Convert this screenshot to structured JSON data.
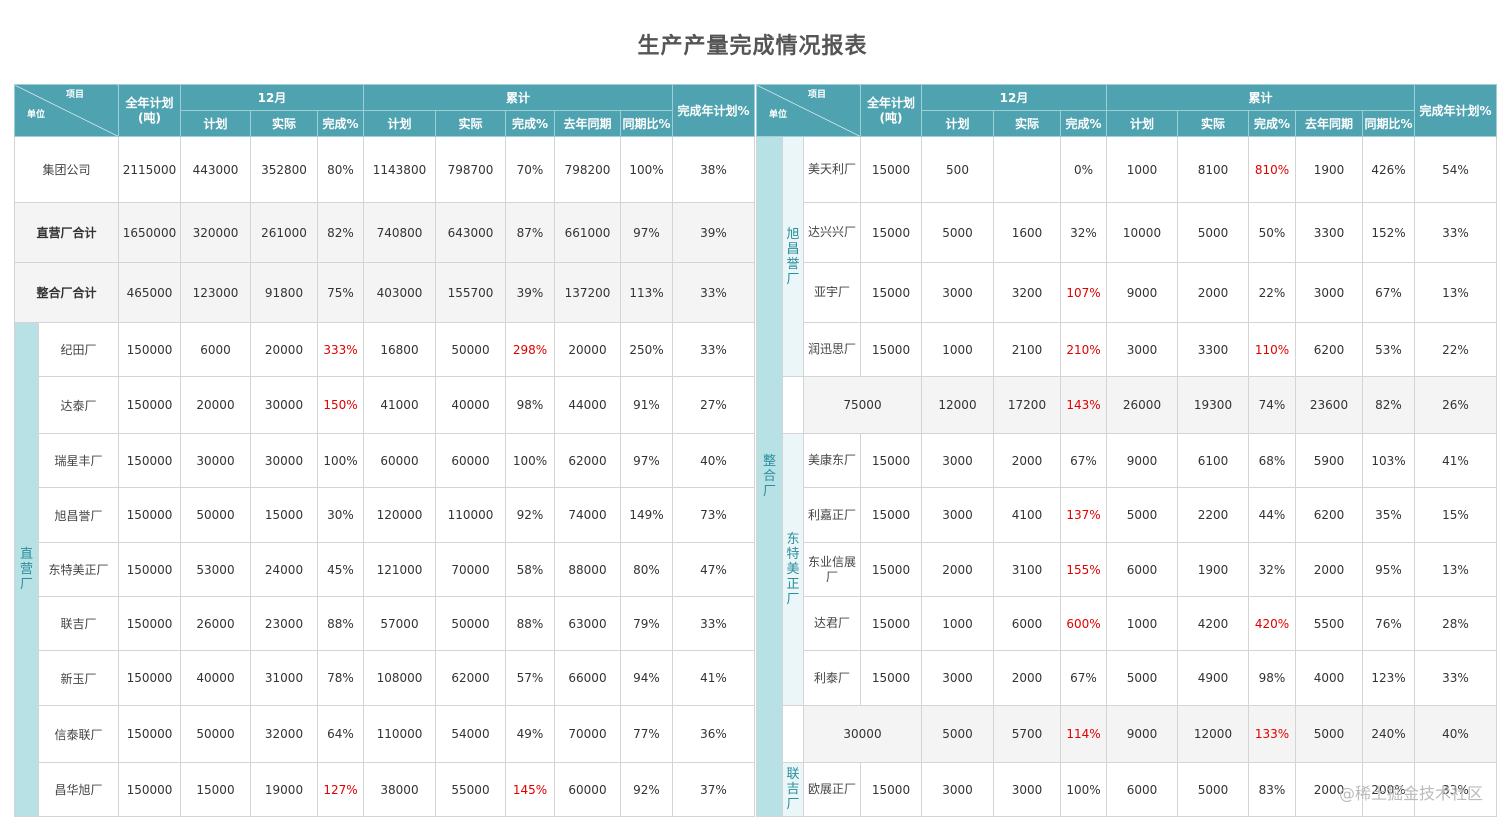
{
  "title": "生产产量完成情况报表",
  "watermark": "@稀土掘金技术社区",
  "colors": {
    "header": "#4fa3b0",
    "group": "#b8e1e6",
    "red": "#e00000"
  },
  "header": {
    "xiangmu": "项目",
    "danwei": "单位",
    "annual_plan": "全年计划(吨)",
    "dec": "12月",
    "cumulative": "累计",
    "plan": "计划",
    "actual": "实际",
    "rate": "完成%",
    "last_year": "去年同期",
    "yoy": "同期比%",
    "annual_rate": "完成年计划%"
  },
  "left": {
    "summary_rows": [
      {
        "name": "集团公司",
        "bold": false,
        "gray": false,
        "v": [
          "2115000",
          "443000",
          "352800",
          "80%",
          "1143800",
          "798700",
          "70%",
          "798200",
          "100%",
          "38%"
        ],
        "red": []
      },
      {
        "name": "直营厂合计",
        "bold": true,
        "gray": true,
        "v": [
          "1650000",
          "320000",
          "261000",
          "82%",
          "740800",
          "643000",
          "87%",
          "661000",
          "97%",
          "39%"
        ],
        "red": []
      },
      {
        "name": "整合厂合计",
        "bold": true,
        "gray": true,
        "v": [
          "465000",
          "123000",
          "91800",
          "75%",
          "403000",
          "155700",
          "39%",
          "137200",
          "113%",
          "33%"
        ],
        "red": []
      }
    ],
    "group_label": "直营厂",
    "rows": [
      {
        "name": "纪田厂",
        "v": [
          "150000",
          "6000",
          "20000",
          "333%",
          "16800",
          "50000",
          "298%",
          "20000",
          "250%",
          "33%"
        ],
        "red": [
          3,
          6
        ]
      },
      {
        "name": "达泰厂",
        "v": [
          "150000",
          "20000",
          "30000",
          "150%",
          "41000",
          "40000",
          "98%",
          "44000",
          "91%",
          "27%"
        ],
        "red": [
          3
        ]
      },
      {
        "name": "瑞星丰厂",
        "v": [
          "150000",
          "30000",
          "30000",
          "100%",
          "60000",
          "60000",
          "100%",
          "62000",
          "97%",
          "40%"
        ],
        "red": []
      },
      {
        "name": "旭昌誉厂",
        "v": [
          "150000",
          "50000",
          "15000",
          "30%",
          "120000",
          "110000",
          "92%",
          "74000",
          "149%",
          "73%"
        ],
        "red": []
      },
      {
        "name": "东特美正厂",
        "v": [
          "150000",
          "53000",
          "24000",
          "45%",
          "121000",
          "70000",
          "58%",
          "88000",
          "80%",
          "47%"
        ],
        "red": []
      },
      {
        "name": "联吉厂",
        "v": [
          "150000",
          "26000",
          "23000",
          "88%",
          "57000",
          "50000",
          "88%",
          "63000",
          "79%",
          "33%"
        ],
        "red": []
      },
      {
        "name": "新玉厂",
        "v": [
          "150000",
          "40000",
          "31000",
          "78%",
          "108000",
          "62000",
          "57%",
          "66000",
          "94%",
          "41%"
        ],
        "red": []
      },
      {
        "name": "信泰联厂",
        "v": [
          "150000",
          "50000",
          "32000",
          "64%",
          "110000",
          "54000",
          "49%",
          "70000",
          "77%",
          "36%"
        ],
        "red": []
      },
      {
        "name": "昌华旭厂",
        "v": [
          "150000",
          "15000",
          "19000",
          "127%",
          "38000",
          "55000",
          "145%",
          "60000",
          "92%",
          "37%"
        ],
        "red": [
          3,
          6
        ]
      }
    ]
  },
  "right": {
    "group_label": "整合厂",
    "sections": [
      {
        "label": "旭昌誉厂",
        "rows": [
          {
            "name": "美天利厂",
            "v": [
              "15000",
              "500",
              "",
              "0%",
              "1000",
              "8100",
              "810%",
              "1900",
              "426%",
              "54%"
            ],
            "red": [
              6
            ]
          },
          {
            "name": "达兴兴厂",
            "v": [
              "15000",
              "5000",
              "1600",
              "32%",
              "10000",
              "5000",
              "50%",
              "3300",
              "152%",
              "33%"
            ],
            "red": []
          },
          {
            "name": "亚宇厂",
            "v": [
              "15000",
              "3000",
              "3200",
              "107%",
              "9000",
              "2000",
              "22%",
              "3000",
              "67%",
              "13%"
            ],
            "red": [
              3
            ]
          },
          {
            "name": "润迅思厂",
            "v": [
              "15000",
              "1000",
              "2100",
              "210%",
              "3000",
              "3300",
              "110%",
              "6200",
              "53%",
              "22%"
            ],
            "red": [
              3,
              6
            ]
          }
        ]
      },
      {
        "subtotal": {
          "v": [
            "75000",
            "12000",
            "17200",
            "143%",
            "26000",
            "19300",
            "74%",
            "23600",
            "82%",
            "26%"
          ],
          "red": [
            3
          ]
        }
      },
      {
        "label": "东特美正厂",
        "rows": [
          {
            "name": "美康东厂",
            "v": [
              "15000",
              "3000",
              "2000",
              "67%",
              "9000",
              "6100",
              "68%",
              "5900",
              "103%",
              "41%"
            ],
            "red": []
          },
          {
            "name": "利嘉正厂",
            "v": [
              "15000",
              "3000",
              "4100",
              "137%",
              "5000",
              "2200",
              "44%",
              "6200",
              "35%",
              "15%"
            ],
            "red": [
              3
            ]
          },
          {
            "name": "东业信展厂",
            "v": [
              "15000",
              "2000",
              "3100",
              "155%",
              "6000",
              "1900",
              "32%",
              "2000",
              "95%",
              "13%"
            ],
            "red": [
              3
            ]
          },
          {
            "name": "达君厂",
            "v": [
              "15000",
              "1000",
              "6000",
              "600%",
              "1000",
              "4200",
              "420%",
              "5500",
              "76%",
              "28%"
            ],
            "red": [
              3,
              6
            ]
          },
          {
            "name": "利泰厂",
            "v": [
              "15000",
              "3000",
              "2000",
              "67%",
              "5000",
              "4900",
              "98%",
              "4000",
              "123%",
              "33%"
            ],
            "red": []
          }
        ]
      },
      {
        "subtotal": {
          "v": [
            "30000",
            "5000",
            "5700",
            "114%",
            "9000",
            "12000",
            "133%",
            "5000",
            "240%",
            "40%"
          ],
          "red": [
            3,
            6
          ]
        }
      },
      {
        "label": "联吉厂",
        "rows": [
          {
            "name": "欧展正厂",
            "v": [
              "15000",
              "3000",
              "3000",
              "100%",
              "6000",
              "5000",
              "83%",
              "2000",
              "200%",
              "33%"
            ],
            "red": []
          }
        ]
      }
    ]
  }
}
